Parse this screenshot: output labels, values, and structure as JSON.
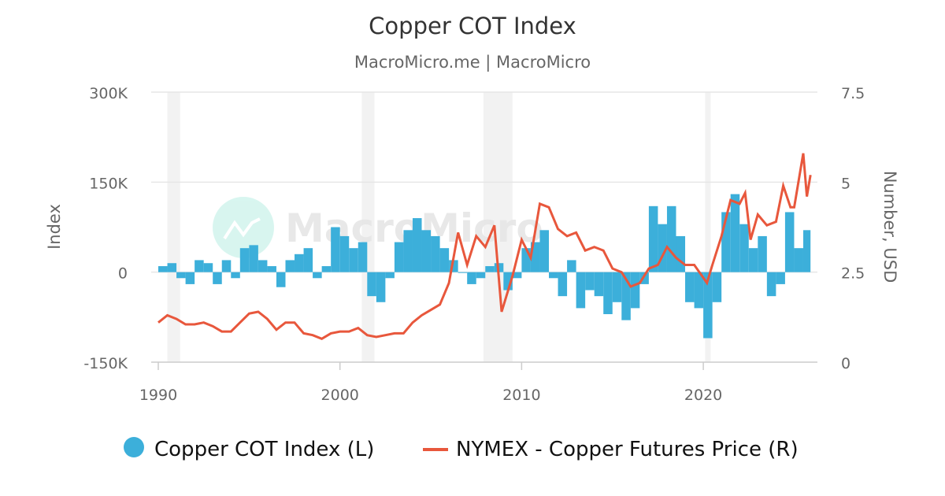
{
  "chart_data": {
    "type": "bar+line",
    "title": "Copper COT Index",
    "subtitle": "MacroMicro.me | MacroMicro",
    "watermark": "MacroMicro",
    "ylabel_left": "Index",
    "ylabel_right": "Number, USD",
    "ylim_left": [
      -150000,
      300000
    ],
    "ylim_right": [
      0,
      7.5
    ],
    "xlim": [
      1989.6,
      2026.1
    ],
    "yticks_left": [
      "-150K",
      "0",
      "150K",
      "300K"
    ],
    "yticks_right": [
      "0",
      "2.5",
      "5",
      "7.5"
    ],
    "xticks": [
      "1990",
      "2000",
      "2010",
      "2020"
    ],
    "grid": true,
    "legend_position": "bottom",
    "recessions": [
      [
        1990.5,
        1991.2
      ],
      [
        2001.2,
        2001.9
      ],
      [
        2007.9,
        2009.5
      ],
      [
        2020.1,
        2020.4
      ]
    ],
    "colors": {
      "cot": "#3cafda",
      "price": "#e8573c",
      "recession": "#f2f2f2"
    },
    "series": [
      {
        "name": "Copper COT Index (L)",
        "type": "bar",
        "x": [
          1990,
          1990.5,
          1991,
          1991.5,
          1992,
          1992.5,
          1993,
          1993.5,
          1994,
          1994.5,
          1995,
          1995.5,
          1996,
          1996.5,
          1997,
          1997.5,
          1998,
          1998.5,
          1999,
          1999.5,
          2000,
          2000.5,
          2001,
          2001.5,
          2002,
          2002.5,
          2003,
          2003.5,
          2004,
          2004.5,
          2005,
          2005.5,
          2006,
          2006.5,
          2007,
          2007.5,
          2008,
          2008.5,
          2009,
          2009.5,
          2010,
          2010.5,
          2011,
          2011.5,
          2012,
          2012.5,
          2013,
          2013.5,
          2014,
          2014.5,
          2015,
          2015.5,
          2016,
          2016.5,
          2017,
          2017.5,
          2018,
          2018.5,
          2019,
          2019.5,
          2020,
          2020.5,
          2021,
          2021.5,
          2022,
          2022.5,
          2023,
          2023.5,
          2024,
          2024.5,
          2025,
          2025.5
        ],
        "values": [
          10000,
          15000,
          -10000,
          -20000,
          20000,
          15000,
          -20000,
          20000,
          -10000,
          40000,
          45000,
          20000,
          10000,
          -25000,
          20000,
          30000,
          40000,
          -10000,
          10000,
          75000,
          60000,
          40000,
          50000,
          -40000,
          -50000,
          -10000,
          50000,
          70000,
          90000,
          70000,
          60000,
          40000,
          20000,
          0,
          -20000,
          -10000,
          10000,
          15000,
          -30000,
          -10000,
          40000,
          50000,
          70000,
          -10000,
          -40000,
          20000,
          -60000,
          -30000,
          -40000,
          -70000,
          -50000,
          -80000,
          -60000,
          -20000,
          110000,
          80000,
          110000,
          60000,
          -50000,
          -60000,
          -110000,
          -50000,
          100000,
          130000,
          80000,
          40000,
          60000,
          -40000,
          -20000,
          100000,
          40000,
          70000
        ]
      },
      {
        "name": "NYMEX - Copper Futures Price (R)",
        "type": "line",
        "x": [
          1990,
          1990.5,
          1991,
          1991.5,
          1992,
          1992.5,
          1993,
          1993.5,
          1994,
          1994.5,
          1995,
          1995.5,
          1996,
          1996.5,
          1997,
          1997.5,
          1998,
          1998.5,
          1999,
          1999.5,
          2000,
          2000.5,
          2001,
          2001.5,
          2002,
          2002.5,
          2003,
          2003.5,
          2004,
          2004.5,
          2005,
          2005.5,
          2006,
          2006.5,
          2007,
          2007.5,
          2008,
          2008.5,
          2008.9,
          2009.5,
          2010,
          2010.5,
          2011,
          2011.5,
          2012,
          2012.5,
          2013,
          2013.5,
          2014,
          2014.5,
          2015,
          2015.5,
          2016,
          2016.5,
          2017,
          2017.5,
          2018,
          2018.5,
          2019,
          2019.5,
          2020.2,
          2020.5,
          2021,
          2021.5,
          2022,
          2022.3,
          2022.6,
          2023,
          2023.5,
          2024,
          2024.4,
          2024.8,
          2025,
          2025.5,
          2025.7,
          2025.9
        ],
        "values": [
          1.1,
          1.3,
          1.2,
          1.05,
          1.05,
          1.1,
          1.0,
          0.85,
          0.85,
          1.1,
          1.35,
          1.4,
          1.2,
          0.9,
          1.1,
          1.1,
          0.8,
          0.75,
          0.65,
          0.8,
          0.85,
          0.85,
          0.95,
          0.75,
          0.7,
          0.75,
          0.8,
          0.8,
          1.1,
          1.3,
          1.45,
          1.6,
          2.2,
          3.6,
          2.7,
          3.5,
          3.2,
          3.8,
          1.4,
          2.4,
          3.4,
          2.9,
          4.4,
          4.3,
          3.7,
          3.5,
          3.6,
          3.1,
          3.2,
          3.1,
          2.6,
          2.5,
          2.1,
          2.2,
          2.6,
          2.7,
          3.2,
          2.9,
          2.7,
          2.7,
          2.2,
          2.7,
          3.5,
          4.5,
          4.4,
          4.7,
          3.4,
          4.1,
          3.8,
          3.9,
          4.9,
          4.3,
          4.3,
          5.8,
          4.6,
          5.2
        ]
      }
    ]
  }
}
